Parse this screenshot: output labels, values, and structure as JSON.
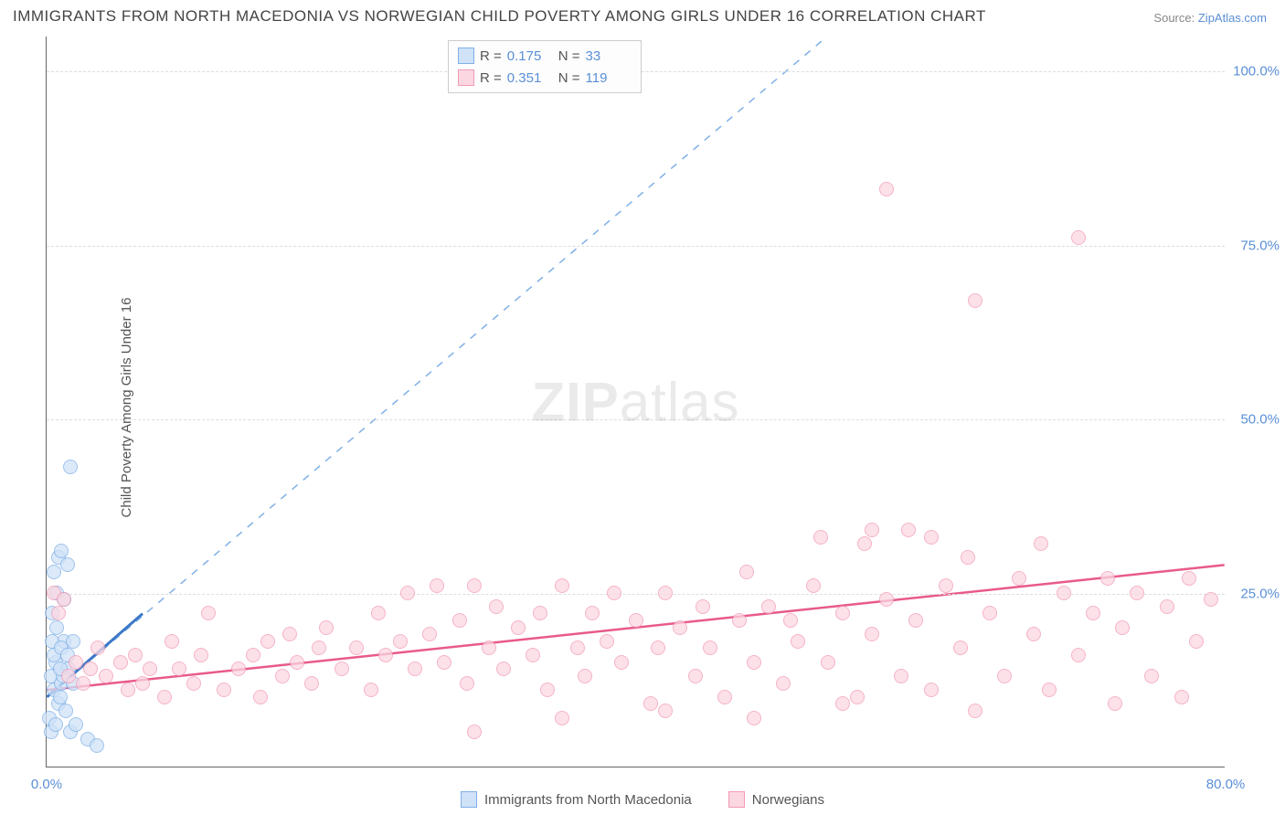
{
  "title": "IMMIGRANTS FROM NORTH MACEDONIA VS NORWEGIAN CHILD POVERTY AMONG GIRLS UNDER 16 CORRELATION CHART",
  "source_label": "Source:",
  "source_value": "ZipAtlas.com",
  "ylabel": "Child Poverty Among Girls Under 16",
  "watermark_a": "ZIP",
  "watermark_b": "atlas",
  "chart": {
    "type": "scatter",
    "xlim": [
      0,
      80
    ],
    "ylim": [
      0,
      105
    ],
    "ytick_values": [
      25,
      50,
      75,
      100
    ],
    "ytick_labels": [
      "25.0%",
      "50.0%",
      "75.0%",
      "100.0%"
    ],
    "xtick_values": [
      0,
      80
    ],
    "xtick_labels": [
      "0.0%",
      "80.0%"
    ],
    "grid_color": "#dddddd",
    "background_color": "#ffffff",
    "marker_radius": 8,
    "marker_stroke_width": 1.5,
    "series": [
      {
        "name": "Immigrants from North Macedonia",
        "fill": "#cfe2f8",
        "stroke": "#7fb0e6",
        "r_value": "0.175",
        "n_value": "33",
        "trend": {
          "x1": 0,
          "y1": 10,
          "x2": 53,
          "y2": 105,
          "dashed": true,
          "color": "#7fb0e6",
          "width": 1.5
        },
        "trend_solid": {
          "x1": 0,
          "y1": 10,
          "x2": 6.5,
          "y2": 22,
          "color": "#3d78c7",
          "width": 3
        },
        "points": [
          [
            0.3,
            13
          ],
          [
            0.5,
            11
          ],
          [
            0.6,
            15
          ],
          [
            0.8,
            9
          ],
          [
            1.0,
            12
          ],
          [
            1.2,
            18
          ],
          [
            0.4,
            22
          ],
          [
            0.7,
            25
          ],
          [
            1.5,
            14
          ],
          [
            0.2,
            7
          ],
          [
            0.9,
            10
          ],
          [
            1.1,
            13
          ],
          [
            1.3,
            8
          ],
          [
            1.8,
            12
          ],
          [
            0.5,
            28
          ],
          [
            0.8,
            30
          ],
          [
            1.0,
            31
          ],
          [
            1.4,
            29
          ],
          [
            0.3,
            5
          ],
          [
            0.6,
            6
          ],
          [
            1.6,
            5
          ],
          [
            2.0,
            6
          ],
          [
            2.8,
            4
          ],
          [
            3.4,
            3
          ],
          [
            1.2,
            24
          ],
          [
            0.4,
            18
          ],
          [
            0.7,
            20
          ],
          [
            1.6,
            43
          ],
          [
            0.5,
            16
          ],
          [
            1.0,
            17
          ],
          [
            1.4,
            16
          ],
          [
            1.8,
            18
          ],
          [
            0.9,
            14
          ]
        ]
      },
      {
        "name": "Norwegians",
        "fill": "#fbd7e2",
        "stroke": "#f29ab5",
        "r_value": "0.351",
        "n_value": "119",
        "trend": {
          "x1": 0,
          "y1": 11,
          "x2": 80,
          "y2": 29,
          "dashed": false,
          "color": "#e85a8a",
          "width": 2.5
        },
        "points": [
          [
            0.5,
            25
          ],
          [
            0.8,
            22
          ],
          [
            1.2,
            24
          ],
          [
            1.5,
            13
          ],
          [
            2,
            15
          ],
          [
            2.5,
            12
          ],
          [
            3,
            14
          ],
          [
            3.5,
            17
          ],
          [
            4,
            13
          ],
          [
            5,
            15
          ],
          [
            5.5,
            11
          ],
          [
            6,
            16
          ],
          [
            6.5,
            12
          ],
          [
            7,
            14
          ],
          [
            8,
            10
          ],
          [
            8.5,
            18
          ],
          [
            9,
            14
          ],
          [
            10,
            12
          ],
          [
            10.5,
            16
          ],
          [
            11,
            22
          ],
          [
            12,
            11
          ],
          [
            13,
            14
          ],
          [
            14,
            16
          ],
          [
            14.5,
            10
          ],
          [
            15,
            18
          ],
          [
            16,
            13
          ],
          [
            16.5,
            19
          ],
          [
            17,
            15
          ],
          [
            18,
            12
          ],
          [
            18.5,
            17
          ],
          [
            19,
            20
          ],
          [
            20,
            14
          ],
          [
            21,
            17
          ],
          [
            22,
            11
          ],
          [
            22.5,
            22
          ],
          [
            23,
            16
          ],
          [
            24,
            18
          ],
          [
            24.5,
            25
          ],
          [
            25,
            14
          ],
          [
            26,
            19
          ],
          [
            26.5,
            26
          ],
          [
            27,
            15
          ],
          [
            28,
            21
          ],
          [
            28.5,
            12
          ],
          [
            29,
            26
          ],
          [
            30,
            17
          ],
          [
            30.5,
            23
          ],
          [
            31,
            14
          ],
          [
            32,
            20
          ],
          [
            33,
            16
          ],
          [
            33.5,
            22
          ],
          [
            34,
            11
          ],
          [
            35,
            26
          ],
          [
            36,
            17
          ],
          [
            36.5,
            13
          ],
          [
            37,
            22
          ],
          [
            38,
            18
          ],
          [
            38.5,
            25
          ],
          [
            39,
            15
          ],
          [
            40,
            21
          ],
          [
            41,
            9
          ],
          [
            41.5,
            17
          ],
          [
            42,
            25
          ],
          [
            43,
            20
          ],
          [
            44,
            13
          ],
          [
            44.5,
            23
          ],
          [
            45,
            17
          ],
          [
            46,
            10
          ],
          [
            47,
            21
          ],
          [
            47.5,
            28
          ],
          [
            48,
            15
          ],
          [
            49,
            23
          ],
          [
            50,
            12
          ],
          [
            50.5,
            21
          ],
          [
            51,
            18
          ],
          [
            52,
            26
          ],
          [
            52.5,
            33
          ],
          [
            53,
            15
          ],
          [
            54,
            22
          ],
          [
            55,
            10
          ],
          [
            55.5,
            32
          ],
          [
            56,
            19
          ],
          [
            57,
            24
          ],
          [
            58,
            13
          ],
          [
            58.5,
            34
          ],
          [
            59,
            21
          ],
          [
            60,
            11
          ],
          [
            61,
            26
          ],
          [
            62,
            17
          ],
          [
            62.5,
            30
          ],
          [
            63,
            8
          ],
          [
            64,
            22
          ],
          [
            65,
            13
          ],
          [
            66,
            27
          ],
          [
            67,
            19
          ],
          [
            67.5,
            32
          ],
          [
            68,
            11
          ],
          [
            69,
            25
          ],
          [
            70,
            16
          ],
          [
            71,
            22
          ],
          [
            72,
            27
          ],
          [
            72.5,
            9
          ],
          [
            73,
            20
          ],
          [
            74,
            25
          ],
          [
            75,
            13
          ],
          [
            76,
            23
          ],
          [
            77,
            10
          ],
          [
            77.5,
            27
          ],
          [
            78,
            18
          ],
          [
            79,
            24
          ],
          [
            57,
            83
          ],
          [
            63,
            67
          ],
          [
            70,
            76
          ],
          [
            56,
            34
          ],
          [
            60,
            33
          ],
          [
            29,
            5
          ],
          [
            35,
            7
          ],
          [
            42,
            8
          ],
          [
            48,
            7
          ],
          [
            54,
            9
          ]
        ]
      }
    ]
  }
}
